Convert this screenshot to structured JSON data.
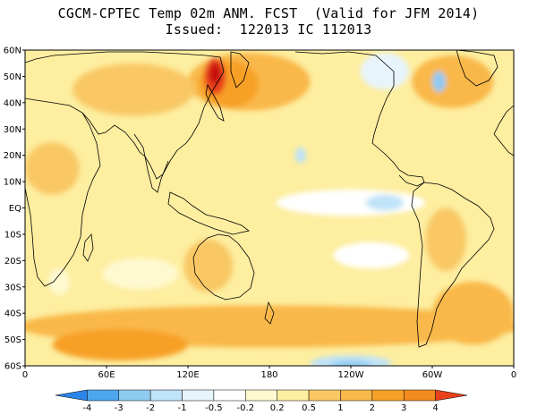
{
  "title": {
    "line1": "CGCM-CPTEC Temp 02m ANM. FCST  (Valid for JFM 2014)",
    "line2": "Issued:  122013 IC 112013"
  },
  "map": {
    "lon_range": [
      0,
      360
    ],
    "lat_range": [
      -60,
      60
    ],
    "lat_labels": [
      "60N",
      "50N",
      "40N",
      "30N",
      "20N",
      "10N",
      "EQ",
      "10S",
      "20S",
      "30S",
      "40S",
      "50S",
      "60S"
    ],
    "lon_ticks": [
      {
        "lon": 0,
        "label": "0"
      },
      {
        "lon": 60,
        "label": "60E"
      },
      {
        "lon": 120,
        "label": "120E"
      },
      {
        "lon": 180,
        "label": "180"
      },
      {
        "lon": 240,
        "label": "120W"
      },
      {
        "lon": 300,
        "label": "60W"
      },
      {
        "lon": 360,
        "label": "0"
      }
    ],
    "background_color": "#fdeea0",
    "anomaly_regions": [
      {
        "name": "north-pacific-strong-warm",
        "lon": 165,
        "lat": 48,
        "rlon": 45,
        "rlat": 11,
        "color": "#f9b84a"
      },
      {
        "name": "north-pacific-core-warm",
        "lon": 150,
        "lat": 47,
        "rlon": 22,
        "rlat": 9,
        "color": "#f7a027"
      },
      {
        "name": "kamchatka-max-warm",
        "lon": 140,
        "lat": 50,
        "rlon": 8,
        "rlat": 7,
        "color": "#e8401c"
      },
      {
        "name": "kamchatka-peak",
        "lon": 140,
        "lat": 51,
        "rlon": 4,
        "rlat": 4,
        "color": "#c41010"
      },
      {
        "name": "southern-ocean-warm",
        "lon": 180,
        "lat": -45,
        "rlon": 185,
        "rlat": 8,
        "color": "#f9b84a"
      },
      {
        "name": "south-indian-warm",
        "lon": 70,
        "lat": -52,
        "rlon": 50,
        "rlat": 6,
        "color": "#f7a027"
      },
      {
        "name": "south-atlantic-warm",
        "lon": 330,
        "lat": -40,
        "rlon": 30,
        "rlat": 12,
        "color": "#f9b84a"
      },
      {
        "name": "siberia-warm",
        "lon": 80,
        "lat": 45,
        "rlon": 45,
        "rlat": 10,
        "color": "#f9c865"
      },
      {
        "name": "north-atlantic-warm",
        "lon": 315,
        "lat": 48,
        "rlon": 30,
        "rlat": 10,
        "color": "#f9b84a"
      },
      {
        "name": "africa-warm",
        "lon": 20,
        "lat": 15,
        "rlon": 20,
        "rlat": 10,
        "color": "#f9c865"
      },
      {
        "name": "south-america-warm",
        "lon": 310,
        "lat": -12,
        "rlon": 15,
        "rlat": 12,
        "color": "#f9c865"
      },
      {
        "name": "australia-warm",
        "lon": 135,
        "lat": -22,
        "rlon": 18,
        "rlat": 10,
        "color": "#f9c865"
      },
      {
        "name": "south-indian-ocean-cool",
        "lon": 85,
        "lat": -25,
        "rlon": 28,
        "rlat": 6,
        "color": "#fff9d0"
      },
      {
        "name": "tropical-pacific-cool",
        "lon": 240,
        "lat": 2,
        "rlon": 55,
        "rlat": 5,
        "color": "#ffffff"
      },
      {
        "name": "east-pacific-cool-core",
        "lon": 265,
        "lat": 2,
        "rlon": 14,
        "rlat": 3,
        "color": "#bfe3f8"
      },
      {
        "name": "south-pacific-cool",
        "lon": 255,
        "lat": -18,
        "rlon": 28,
        "rlat": 5,
        "color": "#ffffff"
      },
      {
        "name": "hawaii-cool",
        "lon": 203,
        "lat": 20,
        "rlon": 4,
        "rlat": 3,
        "color": "#bfe3f8"
      },
      {
        "name": "north-america-cool",
        "lon": 265,
        "lat": 52,
        "rlon": 18,
        "rlat": 7,
        "color": "#e7f4fc"
      },
      {
        "name": "labrador-cool",
        "lon": 305,
        "lat": 48,
        "rlon": 5,
        "rlat": 4,
        "color": "#8fcaf1"
      },
      {
        "name": "antarctic-edge-cool",
        "lon": 240,
        "lat": -59,
        "rlon": 30,
        "rlat": 3,
        "color": "#bfe3f8"
      },
      {
        "name": "antarctic-edge-cold-core",
        "lon": 240,
        "lat": -60,
        "rlon": 15,
        "rlat": 2,
        "color": "#8fcaf1"
      },
      {
        "name": "southern-africa-cool",
        "lon": 25,
        "lat": -28,
        "rlon": 8,
        "rlat": 5,
        "color": "#fff9d0"
      }
    ],
    "colorbar": {
      "colors": [
        "#2b85e8",
        "#4ea6ef",
        "#8fcaf1",
        "#bfe3f8",
        "#e7f4fc",
        "#ffffff",
        "#fff9d0",
        "#fdeea0",
        "#f9c865",
        "#f9b84a",
        "#f7a027",
        "#f28a1e",
        "#e8401c"
      ],
      "labels": [
        "-4",
        "-3",
        "-2",
        "-1",
        "-0.5",
        "-0.2",
        "0.2",
        "0.5",
        "1",
        "2",
        "3",
        "4"
      ]
    }
  }
}
